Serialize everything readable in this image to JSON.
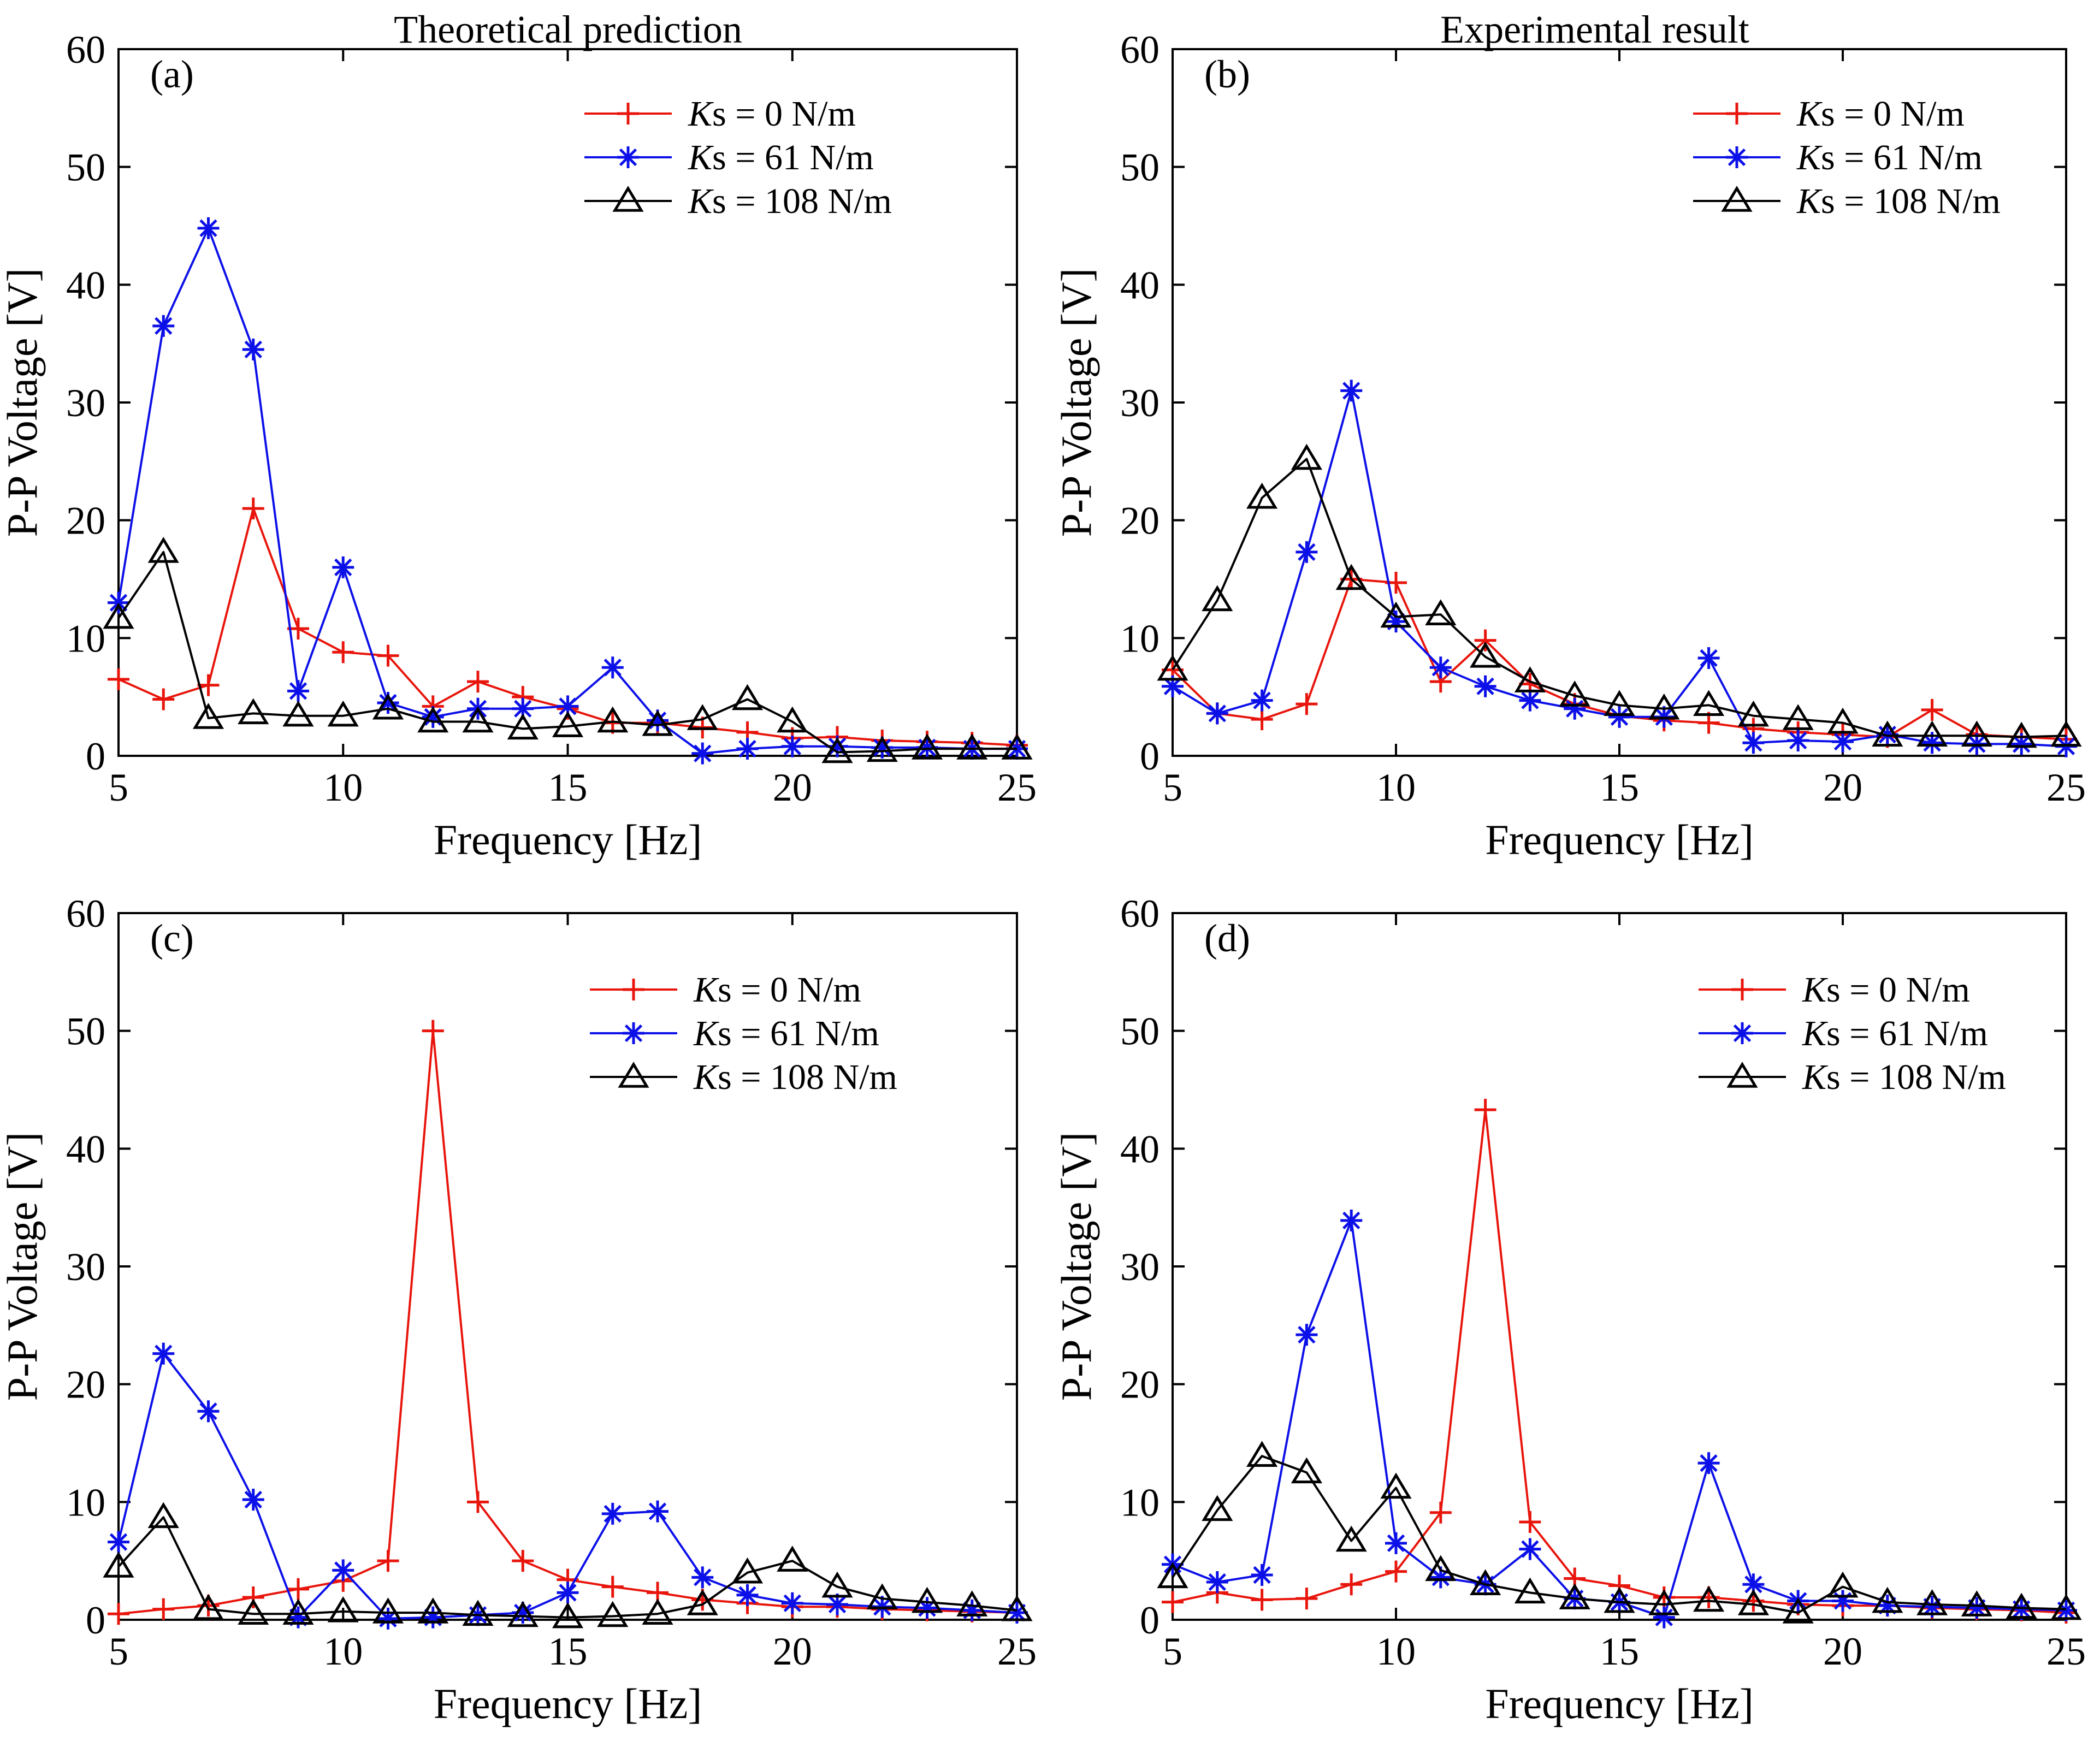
{
  "chart_data": [
    {
      "type": "line",
      "panel_label": "(a)",
      "title": "Theoretical prediction",
      "xlabel": "Frequency [Hz]",
      "ylabel": "P-P Voltage [V]",
      "xlim": [
        5,
        25
      ],
      "ylim": [
        0,
        60
      ],
      "xticks": [
        "5",
        "10",
        "15",
        "20",
        "25"
      ],
      "yticks": [
        "0",
        "10",
        "20",
        "30",
        "40",
        "50",
        "60"
      ],
      "legend_position": "top-right",
      "x": [
        5,
        6,
        7,
        8,
        9,
        10,
        11,
        12,
        13,
        14,
        15,
        16,
        17,
        18,
        19,
        20,
        21,
        22,
        23,
        24,
        25
      ],
      "series": [
        {
          "name_italic": "K",
          "name_rest": "s = 0 N/m",
          "color": "#e8150c",
          "marker": "plus",
          "values": [
            6.5,
            4.8,
            6.0,
            21.0,
            10.8,
            8.8,
            8.5,
            4.2,
            6.3,
            5.0,
            4.0,
            2.8,
            2.8,
            2.4,
            2.0,
            1.5,
            1.6,
            1.3,
            1.2,
            1.1,
            0.9
          ]
        },
        {
          "name_italic": "K",
          "name_rest": "s = 61 N/m",
          "color": "#0c10e8",
          "marker": "star",
          "values": [
            13.0,
            36.5,
            44.8,
            34.5,
            5.5,
            16.0,
            4.5,
            3.3,
            4.0,
            4.0,
            4.2,
            7.5,
            3.0,
            0.2,
            0.6,
            0.8,
            0.8,
            0.7,
            0.7,
            0.6,
            0.6
          ]
        },
        {
          "name_italic": "K",
          "name_rest": "s = 108 N/m",
          "color": "#000000",
          "marker": "triangle",
          "values": [
            11.7,
            17.3,
            3.2,
            3.6,
            3.4,
            3.4,
            4.0,
            2.9,
            2.9,
            2.3,
            2.5,
            2.9,
            2.6,
            3.1,
            4.8,
            2.9,
            0.3,
            0.4,
            0.6,
            0.6,
            0.6
          ]
        }
      ]
    },
    {
      "type": "line",
      "panel_label": "(b)",
      "title": "Experimental result",
      "xlabel": "Frequency [Hz]",
      "ylabel": "P-P Voltage [V]",
      "xlim": [
        5,
        25
      ],
      "ylim": [
        0,
        60
      ],
      "xticks": [
        "5",
        "10",
        "15",
        "20",
        "25"
      ],
      "yticks": [
        "0",
        "10",
        "20",
        "30",
        "40",
        "50",
        "60"
      ],
      "legend_position": "top-right",
      "x": [
        5,
        6,
        7,
        8,
        9,
        10,
        11,
        12,
        13,
        14,
        15,
        16,
        17,
        18,
        19,
        20,
        21,
        22,
        23,
        24,
        25
      ],
      "series": [
        {
          "name_italic": "K",
          "name_rest": "s = 0 N/m",
          "color": "#e8150c",
          "marker": "plus",
          "values": [
            7.3,
            3.6,
            3.1,
            4.4,
            15.0,
            14.7,
            6.3,
            9.8,
            6.1,
            4.4,
            3.4,
            3.0,
            2.8,
            2.3,
            2.0,
            1.8,
            1.6,
            3.9,
            1.8,
            1.6,
            1.4
          ]
        },
        {
          "name_italic": "K",
          "name_rest": "s = 61 N/m",
          "color": "#0c10e8",
          "marker": "star",
          "values": [
            5.9,
            3.6,
            4.7,
            17.3,
            31.0,
            11.4,
            7.5,
            5.9,
            4.7,
            4.0,
            3.3,
            3.3,
            8.3,
            1.1,
            1.3,
            1.2,
            1.8,
            1.1,
            1.0,
            1.0,
            0.8
          ]
        },
        {
          "name_italic": "K",
          "name_rest": "s = 108 N/m",
          "color": "#000000",
          "marker": "triangle",
          "values": [
            7.3,
            13.2,
            21.9,
            25.2,
            15.0,
            11.8,
            12.0,
            8.4,
            6.3,
            5.1,
            4.3,
            4.0,
            4.3,
            3.4,
            3.1,
            2.8,
            1.7,
            1.7,
            1.7,
            1.6,
            1.7
          ]
        }
      ]
    },
    {
      "type": "line",
      "panel_label": "(c)",
      "title": "",
      "xlabel": "Frequency [Hz]",
      "ylabel": "P-P Voltage [V]",
      "xlim": [
        5,
        25
      ],
      "ylim": [
        0,
        60
      ],
      "xticks": [
        "5",
        "10",
        "15",
        "20",
        "25"
      ],
      "yticks": [
        "0",
        "10",
        "20",
        "30",
        "40",
        "50",
        "60"
      ],
      "legend_position": "top-right",
      "x": [
        5,
        6,
        7,
        8,
        9,
        10,
        11,
        12,
        13,
        14,
        15,
        16,
        17,
        18,
        19,
        20,
        21,
        22,
        23,
        24,
        25
      ],
      "series": [
        {
          "name_italic": "K",
          "name_rest": "s = 0 N/m",
          "color": "#e8150c",
          "marker": "plus",
          "values": [
            0.5,
            0.9,
            1.2,
            1.9,
            2.6,
            3.3,
            5.0,
            50.0,
            10.0,
            5.0,
            3.4,
            2.8,
            2.3,
            1.7,
            1.4,
            1.1,
            1.1,
            0.9,
            0.8,
            0.7,
            0.6
          ]
        },
        {
          "name_italic": "K",
          "name_rest": "s = 61 N/m",
          "color": "#0c10e8",
          "marker": "star",
          "values": [
            6.6,
            22.6,
            17.7,
            10.2,
            0.2,
            4.2,
            0.1,
            0.2,
            0.4,
            0.6,
            2.3,
            9.0,
            9.2,
            3.6,
            2.1,
            1.4,
            1.3,
            1.1,
            1.0,
            0.8,
            0.6
          ]
        },
        {
          "name_italic": "K",
          "name_rest": "s = 108 N/m",
          "color": "#000000",
          "marker": "triangle",
          "values": [
            4.5,
            8.7,
            0.9,
            0.5,
            0.5,
            0.7,
            0.6,
            0.6,
            0.4,
            0.3,
            0.2,
            0.3,
            0.5,
            1.3,
            4.0,
            5.0,
            2.8,
            1.8,
            1.5,
            1.2,
            0.8
          ]
        }
      ]
    },
    {
      "type": "line",
      "panel_label": "(d)",
      "title": "",
      "xlabel": "Frequency [Hz]",
      "ylabel": "P-P Voltage [V]",
      "xlim": [
        5,
        25
      ],
      "ylim": [
        0,
        60
      ],
      "xticks": [
        "5",
        "10",
        "15",
        "20",
        "25"
      ],
      "yticks": [
        "0",
        "10",
        "20",
        "30",
        "40",
        "50",
        "60"
      ],
      "legend_position": "top-right",
      "x": [
        5,
        6,
        7,
        8,
        9,
        10,
        11,
        12,
        13,
        14,
        15,
        16,
        17,
        18,
        19,
        20,
        21,
        22,
        23,
        24,
        25
      ],
      "series": [
        {
          "name_italic": "K",
          "name_rest": "s = 0 N/m",
          "color": "#e8150c",
          "marker": "plus",
          "values": [
            1.5,
            2.3,
            1.7,
            1.8,
            3.0,
            4.1,
            9.1,
            43.3,
            8.3,
            3.5,
            2.9,
            1.9,
            1.9,
            1.6,
            1.3,
            1.2,
            1.2,
            1.0,
            0.9,
            0.8,
            0.6
          ]
        },
        {
          "name_italic": "K",
          "name_rest": "s = 61 N/m",
          "color": "#0c10e8",
          "marker": "star",
          "values": [
            4.7,
            3.2,
            3.8,
            24.2,
            33.9,
            6.5,
            3.6,
            3.0,
            6.0,
            1.8,
            1.5,
            0.2,
            13.3,
            3.0,
            1.6,
            1.6,
            1.2,
            1.1,
            1.0,
            0.9,
            0.8
          ]
        },
        {
          "name_italic": "K",
          "name_rest": "s = 108 N/m",
          "color": "#000000",
          "marker": "triangle",
          "values": [
            3.6,
            9.3,
            13.9,
            12.5,
            6.7,
            11.2,
            4.2,
            3.0,
            2.3,
            1.8,
            1.5,
            1.3,
            1.6,
            1.3,
            0.6,
            2.8,
            1.5,
            1.3,
            1.2,
            1.0,
            0.9
          ]
        }
      ]
    }
  ]
}
